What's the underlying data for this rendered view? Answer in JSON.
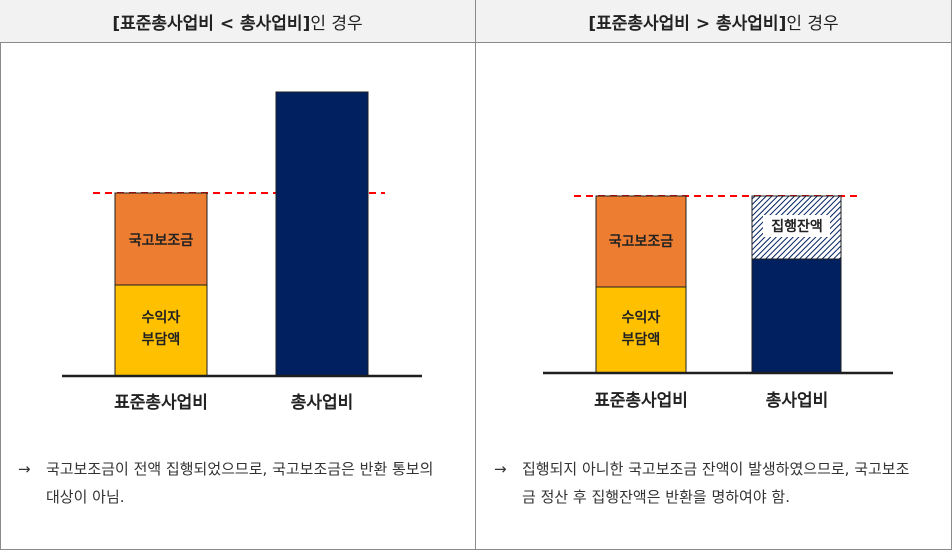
{
  "colors": {
    "orange": "#ed7d31",
    "yellow": "#ffc000",
    "navy": "#002060",
    "dashed_line": "#ff0000",
    "header_bg": "#f2f2f2"
  },
  "left": {
    "header_bold": "[표준총사업비 < 총사업비]",
    "header_rest": "인 경우",
    "bar1_top_label": "국고보조금",
    "bar1_bottom_label_line1": "수익자",
    "bar1_bottom_label_line2": "부담액",
    "bar1_axis_label": "표준총사업비",
    "bar2_axis_label": "총사업비",
    "note_arrow": "→",
    "note_text": "국고보조금이 전액 집행되었으므로, 국고보조금은 반환 통보의 대상이 아님."
  },
  "right": {
    "header_bold": "[표준총사업비 > 총사업비]",
    "header_rest": "인 경우",
    "bar1_top_label": "국고보조금",
    "bar1_bottom_label_line1": "수익자",
    "bar1_bottom_label_line2": "부담액",
    "bar1_axis_label": "표준총사업비",
    "bar2_hatch_label": "집행잔액",
    "bar2_axis_label": "총사업비",
    "note_arrow": "→",
    "note_text": "집행되지 아니한 국고보조금 잔액이 발생하였으므로, 국고보조금 정산 후 집행잔액은 반환을 명하여야 함."
  }
}
